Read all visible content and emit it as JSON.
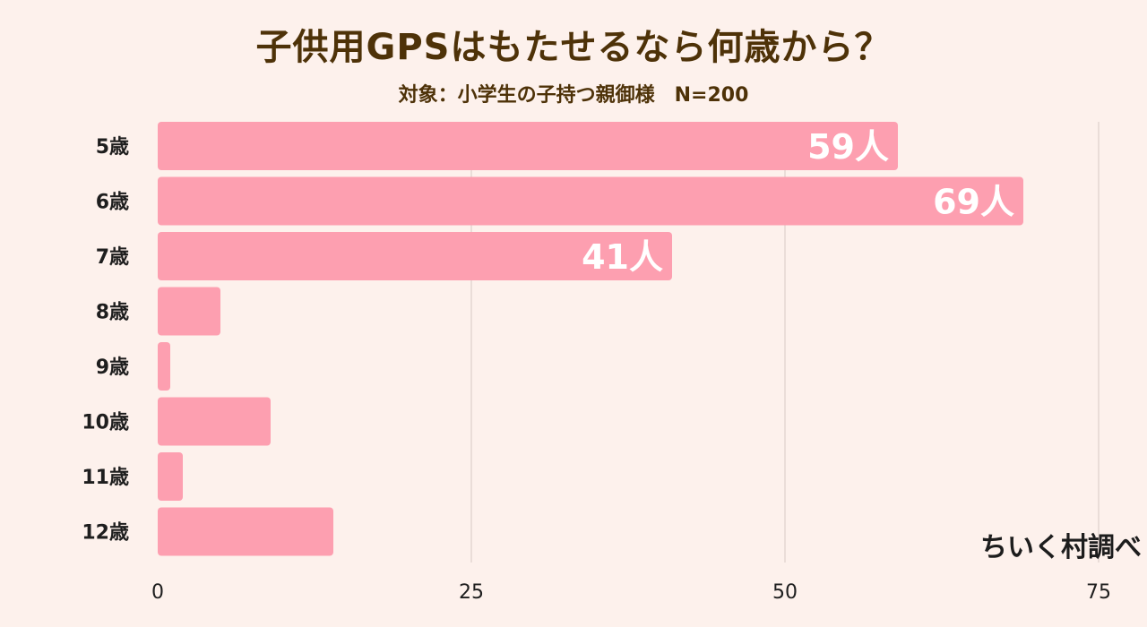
{
  "title": "子供用GPSはもたせるなら何歳から？",
  "subtitle": "対象：小学生の子持つ親御様　N=200",
  "credit": "ちいく村調べ",
  "colors": {
    "background": "#fdf1ec",
    "bar": "#fd9fb0",
    "grid": "#d7c9c4",
    "text": "#4e3208"
  },
  "chart_data": {
    "type": "bar",
    "orientation": "horizontal",
    "categories": [
      "5歳",
      "6歳",
      "7歳",
      "8歳",
      "9歳",
      "10歳",
      "11歳",
      "12歳"
    ],
    "values": [
      59,
      69,
      41,
      5,
      1,
      9,
      2,
      14
    ],
    "data_labels": [
      "59人",
      "69人",
      "41人",
      "",
      "",
      "",
      "",
      ""
    ],
    "xlim": [
      0,
      75
    ],
    "xticks": [
      0,
      25,
      50,
      75
    ],
    "grid": true,
    "unit": "人"
  }
}
